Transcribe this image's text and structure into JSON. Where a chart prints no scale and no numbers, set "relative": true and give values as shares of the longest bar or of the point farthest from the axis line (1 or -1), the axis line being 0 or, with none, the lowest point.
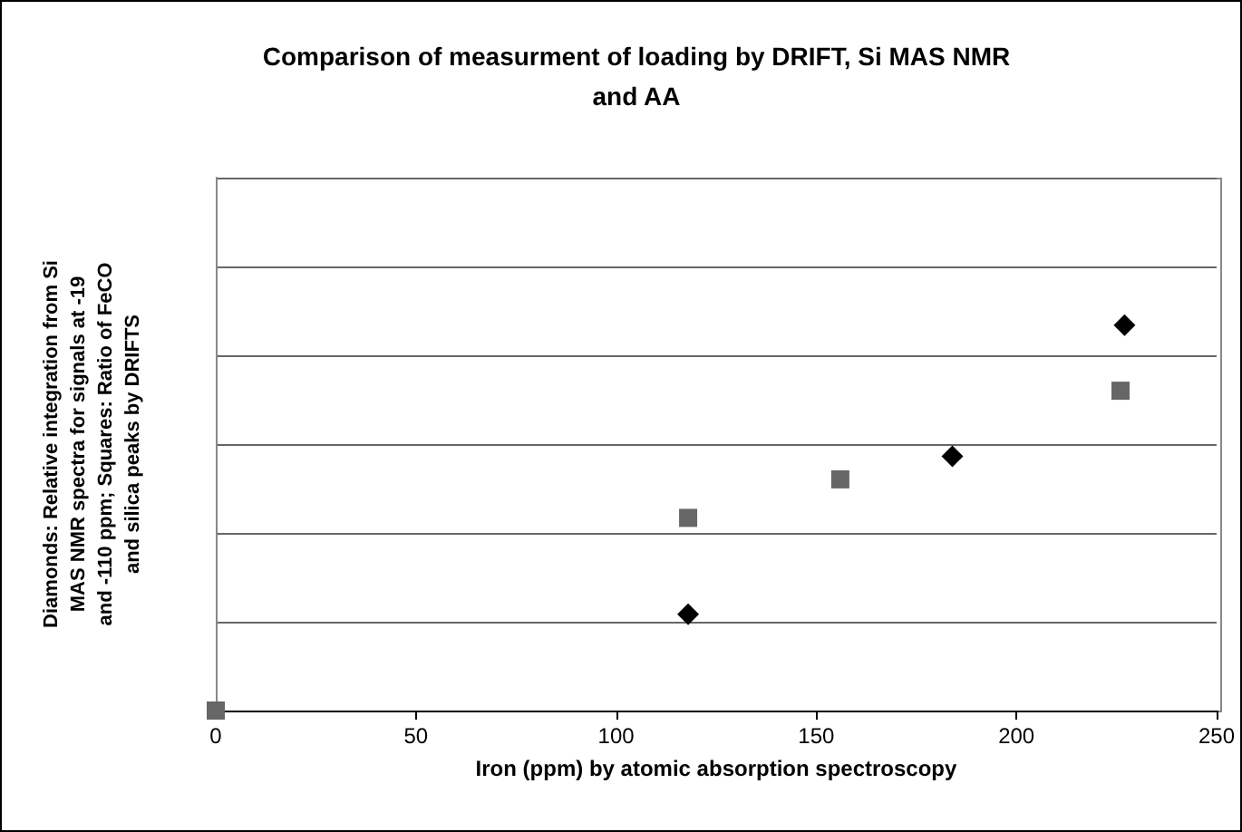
{
  "chart_data": {
    "type": "scatter",
    "title": "Comparison of measurment of loading by DRIFT, Si MAS NMR\nand AA",
    "xlabel": "Iron (ppm) by atomic absorption spectroscopy",
    "ylabel": "Diamonds: Relative integration from Si\nMAS NMR spectra for signals at -19\nand -110 ppm; Squares: Ratio of FeCO\nand silica peaks by DRIFTS",
    "relative": true,
    "xlim": [
      0,
      250
    ],
    "xticks": [
      0,
      50,
      100,
      150,
      200,
      250
    ],
    "grid": "y",
    "series": [
      {
        "color": "#000000",
        "marker": "diamond",
        "x": [
          118,
          184,
          227
        ],
        "values": [
          0.25,
          0.66,
          1
        ]
      },
      {
        "color": "#666666",
        "marker": "square",
        "x": [
          0,
          118,
          156,
          226
        ],
        "values": [
          0,
          0.5,
          0.6,
          0.83
        ]
      }
    ]
  }
}
